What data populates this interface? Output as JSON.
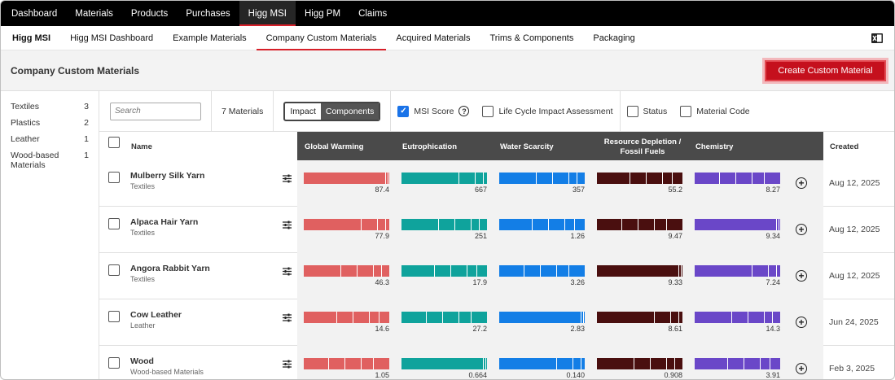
{
  "topnav": [
    "Dashboard",
    "Materials",
    "Products",
    "Purchases",
    "Higg MSI",
    "Higg PM",
    "Claims"
  ],
  "topnav_active": 4,
  "subnav": [
    "Higg MSI",
    "Higg MSI Dashboard",
    "Example Materials",
    "Company Custom Materials",
    "Acquired Materials",
    "Trims & Components",
    "Packaging"
  ],
  "subnav_active": 3,
  "page": {
    "title": "Company Custom Materials",
    "create_button": "Create Custom Material"
  },
  "sidebar": [
    {
      "label": "Textiles",
      "count": "3"
    },
    {
      "label": "Plastics",
      "count": "2"
    },
    {
      "label": "Leather",
      "count": "1"
    },
    {
      "label": "Wood-based Materials",
      "count": "1"
    }
  ],
  "filters": {
    "search_placeholder": "Search",
    "count_label": "7 Materials",
    "toggle": [
      "Impact",
      "Components"
    ],
    "msi_score": "MSI Score",
    "lca": "Life Cycle Impact Assessment",
    "status": "Status",
    "material_code": "Material Code"
  },
  "table": {
    "columns": {
      "name": "Name",
      "global_warming": "Global Warming",
      "eutrophication": "Eutrophication",
      "water_scarcity": "Water Scarcity",
      "resource_depletion": "Resource Depletion /",
      "resource_depletion_2": "Fossil Fuels",
      "chemistry": "Chemistry",
      "created": "Created"
    },
    "colors": {
      "global_warming": "#e06060",
      "eutrophication": "#0fa39c",
      "water_scarcity": "#137ee6",
      "resource_depletion": "#4a0f0f",
      "chemistry": "#6a47c8"
    },
    "rows": [
      {
        "name": "Mulberry Silk Yarn",
        "category": "Textiles",
        "values": [
          "87.4",
          "667",
          "357",
          "55.2",
          "8.27"
        ],
        "created": "Aug 12, 2025"
      },
      {
        "name": "Alpaca Hair Yarn",
        "category": "Textiles",
        "values": [
          "77.9",
          "251",
          "1.26",
          "9.47",
          "9.34"
        ],
        "created": "Aug 12, 2025"
      },
      {
        "name": "Angora Rabbit Yarn",
        "category": "Textiles",
        "values": [
          "46.3",
          "17.9",
          "3.26",
          "9.33",
          "7.24"
        ],
        "created": "Aug 12, 2025"
      },
      {
        "name": "Cow Leather",
        "category": "Leather",
        "values": [
          "14.6",
          "27.2",
          "2.83",
          "8.61",
          "14.3"
        ],
        "created": "Jun 24, 2025"
      },
      {
        "name": "Wood",
        "category": "Wood-based Materials",
        "values": [
          "1.05",
          "0.664",
          "0.140",
          "0.908",
          "3.91"
        ],
        "created": "Feb 3, 2025"
      }
    ]
  }
}
